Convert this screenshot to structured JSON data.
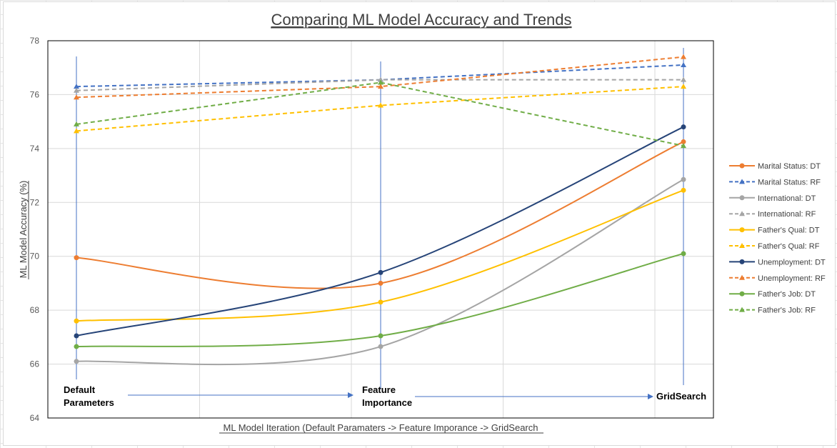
{
  "chart_data": {
    "type": "line",
    "title": "Comparing ML Model Accuracy and Trends",
    "xlabel": "ML Model Iteration (Default Paramaters -> Feature Imporance -> GridSearch",
    "ylabel": "ML Model Accuracy (%)",
    "categories": [
      "Default Parameters",
      "Feature Importance",
      "GridSearch"
    ],
    "ylim": [
      64,
      78
    ],
    "yticks": [
      "64",
      "66",
      "68",
      "70",
      "72",
      "74",
      "76",
      "78"
    ],
    "grid": true,
    "legend_position": "right",
    "annotations": [
      {
        "lines": [
          "Default",
          "Parameters"
        ],
        "category": 0
      },
      {
        "lines": [
          "Feature",
          "Importance"
        ],
        "category": 1
      },
      {
        "lines": [
          "GridSearch"
        ],
        "category": 2
      }
    ],
    "series": [
      {
        "name": "Marital Status: DT",
        "values": [
          69.95,
          69.0,
          74.25
        ],
        "color": "#ED7D31",
        "dashed": false,
        "marker": "circle"
      },
      {
        "name": "Marital Status: RF",
        "values": [
          76.3,
          76.55,
          77.1
        ],
        "color": "#4472C4",
        "dashed": true,
        "marker": "triangle"
      },
      {
        "name": "International: DT",
        "values": [
          66.1,
          66.65,
          72.85
        ],
        "color": "#A5A5A5",
        "dashed": false,
        "marker": "circle"
      },
      {
        "name": "International: RF",
        "values": [
          76.15,
          76.55,
          76.55
        ],
        "color": "#A5A5A5",
        "dashed": true,
        "marker": "triangle"
      },
      {
        "name": "Father's Qual: DT",
        "values": [
          67.6,
          68.3,
          72.45
        ],
        "color": "#FFC000",
        "dashed": false,
        "marker": "circle"
      },
      {
        "name": "Father's Qual: RF",
        "values": [
          74.65,
          75.6,
          76.3
        ],
        "color": "#FFC000",
        "dashed": true,
        "marker": "triangle"
      },
      {
        "name": "Unemployment: DT",
        "values": [
          67.05,
          69.4,
          74.8
        ],
        "color": "#264478",
        "dashed": false,
        "marker": "circle"
      },
      {
        "name": "Unemployment: RF",
        "values": [
          75.9,
          76.3,
          77.4
        ],
        "color": "#ED7D31",
        "dashed": true,
        "marker": "triangle"
      },
      {
        "name": "Father's Job: DT",
        "values": [
          66.65,
          67.05,
          70.1
        ],
        "color": "#70AD47",
        "dashed": false,
        "marker": "circle"
      },
      {
        "name": "Father's Job: RF",
        "values": [
          74.9,
          76.45,
          74.1
        ],
        "color": "#70AD47",
        "dashed": true,
        "marker": "triangle"
      }
    ]
  }
}
